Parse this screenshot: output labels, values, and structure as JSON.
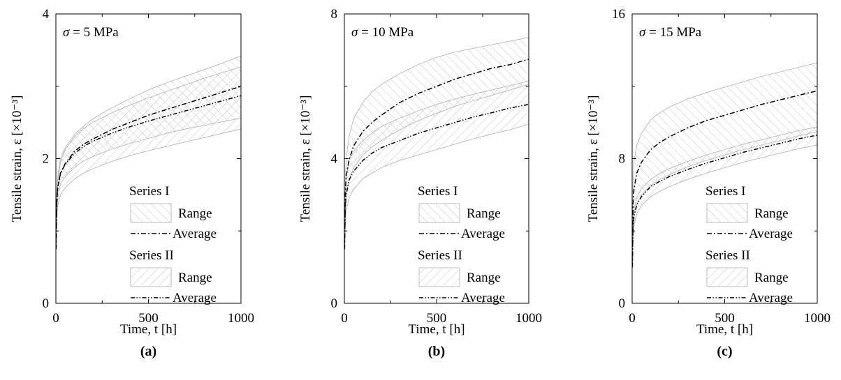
{
  "chart_data": [
    {
      "type": "area",
      "panel_label": "(a)",
      "annotation": "σ = 5 MPa",
      "xlabel": "Time, t [h]",
      "ylabel": "Tensile strain, ε [×10⁻³]",
      "xlim": [
        0,
        1000
      ],
      "ylim": [
        0,
        4
      ],
      "x_ticks": [
        0,
        500,
        1000
      ],
      "y_ticks": [
        0,
        2,
        4
      ],
      "legend": {
        "placement": "lower-right",
        "series1_label": "Series I",
        "series2_label": "Series II",
        "range_label": "Range",
        "average_label": "Average"
      },
      "x": [
        1,
        5,
        10,
        25,
        50,
        100,
        150,
        200,
        300,
        400,
        500,
        600,
        700,
        800,
        900,
        1000
      ],
      "series": [
        {
          "name": "Series I",
          "average": [
            0.75,
            1.4,
            1.6,
            1.8,
            1.93,
            2.1,
            2.2,
            2.27,
            2.4,
            2.5,
            2.6,
            2.68,
            2.76,
            2.84,
            2.92,
            3.0
          ],
          "lower": [
            0.75,
            1.3,
            1.45,
            1.65,
            1.75,
            1.88,
            1.97,
            2.03,
            2.13,
            2.21,
            2.28,
            2.35,
            2.41,
            2.46,
            2.51,
            2.56
          ],
          "upper": [
            0.75,
            1.55,
            1.75,
            2.0,
            2.15,
            2.33,
            2.45,
            2.55,
            2.7,
            2.83,
            2.95,
            3.05,
            3.14,
            3.23,
            3.32,
            3.42
          ]
        },
        {
          "name": "Series II",
          "average": [
            0.75,
            1.4,
            1.6,
            1.8,
            1.92,
            2.07,
            2.17,
            2.24,
            2.35,
            2.44,
            2.52,
            2.59,
            2.66,
            2.73,
            2.8,
            2.87
          ],
          "lower": [
            0.75,
            1.2,
            1.35,
            1.5,
            1.6,
            1.72,
            1.8,
            1.86,
            1.96,
            2.04,
            2.11,
            2.17,
            2.23,
            2.29,
            2.35,
            2.41
          ],
          "upper": [
            0.75,
            1.5,
            1.7,
            1.95,
            2.12,
            2.3,
            2.42,
            2.5,
            2.63,
            2.74,
            2.84,
            2.93,
            3.02,
            3.11,
            3.19,
            3.27
          ]
        }
      ]
    },
    {
      "type": "area",
      "panel_label": "(b)",
      "annotation": "σ = 10 MPa",
      "xlabel": "Time, t [h]",
      "ylabel": "Tensile strain, ε [×10⁻³]",
      "xlim": [
        0,
        1000
      ],
      "ylim": [
        0,
        8
      ],
      "x_ticks": [
        0,
        500,
        1000
      ],
      "y_ticks": [
        0,
        4,
        8
      ],
      "legend": {
        "placement": "lower-right",
        "series1_label": "Series I",
        "series2_label": "Series II",
        "range_label": "Range",
        "average_label": "Average"
      },
      "x": [
        1,
        5,
        10,
        25,
        50,
        100,
        150,
        200,
        300,
        400,
        500,
        600,
        700,
        800,
        900,
        1000
      ],
      "series": [
        {
          "name": "Series I",
          "average": [
            1.5,
            3.0,
            3.5,
            3.95,
            4.35,
            4.75,
            5.0,
            5.2,
            5.55,
            5.8,
            6.0,
            6.2,
            6.35,
            6.5,
            6.6,
            6.75
          ],
          "lower": [
            1.5,
            2.6,
            3.0,
            3.4,
            3.75,
            4.1,
            4.32,
            4.5,
            4.8,
            5.05,
            5.25,
            5.45,
            5.6,
            5.75,
            5.9,
            6.05
          ],
          "upper": [
            1.5,
            3.4,
            4.0,
            4.6,
            5.1,
            5.55,
            5.85,
            6.05,
            6.35,
            6.6,
            6.8,
            6.95,
            7.05,
            7.15,
            7.25,
            7.35
          ]
        },
        {
          "name": "Series II",
          "average": [
            1.5,
            2.6,
            3.0,
            3.4,
            3.65,
            3.95,
            4.15,
            4.3,
            4.5,
            4.7,
            4.85,
            5.0,
            5.15,
            5.27,
            5.4,
            5.5
          ],
          "lower": [
            1.5,
            2.2,
            2.55,
            2.9,
            3.15,
            3.45,
            3.6,
            3.75,
            3.95,
            4.1,
            4.25,
            4.4,
            4.55,
            4.68,
            4.8,
            4.95
          ],
          "upper": [
            1.5,
            3.0,
            3.5,
            3.95,
            4.2,
            4.5,
            4.72,
            4.88,
            5.12,
            5.32,
            5.5,
            5.65,
            5.78,
            5.9,
            6.02,
            6.15
          ]
        }
      ]
    },
    {
      "type": "area",
      "panel_label": "(c)",
      "annotation": "σ = 15 MPa",
      "xlabel": "Time, t [h]",
      "ylabel": "Tensile strain, ε [×10⁻³]",
      "xlim": [
        0,
        1000
      ],
      "ylim": [
        0,
        16
      ],
      "x_ticks": [
        0,
        500,
        1000
      ],
      "y_ticks": [
        0,
        8,
        16
      ],
      "legend": {
        "placement": "lower-right",
        "series1_label": "Series I",
        "series2_label": "Series II",
        "range_label": "Range",
        "average_label": "Average"
      },
      "x": [
        1,
        5,
        10,
        25,
        50,
        100,
        150,
        200,
        300,
        400,
        500,
        600,
        700,
        800,
        900,
        1000
      ],
      "series": [
        {
          "name": "Series I",
          "average": [
            2.0,
            5.5,
            6.3,
            7.2,
            7.8,
            8.5,
            8.9,
            9.2,
            9.7,
            10.1,
            10.4,
            10.7,
            11.0,
            11.25,
            11.5,
            11.75
          ],
          "lower": [
            2.0,
            4.3,
            4.95,
            5.5,
            5.95,
            6.5,
            6.85,
            7.1,
            7.55,
            7.9,
            8.2,
            8.5,
            8.75,
            9.0,
            9.25,
            9.5
          ],
          "upper": [
            2.0,
            6.8,
            7.8,
            8.75,
            9.4,
            10.15,
            10.55,
            10.85,
            11.3,
            11.65,
            11.95,
            12.25,
            12.55,
            12.8,
            13.05,
            13.3
          ]
        },
        {
          "name": "Series II",
          "average": [
            2.0,
            4.2,
            4.8,
            5.45,
            5.9,
            6.45,
            6.75,
            7.0,
            7.4,
            7.75,
            8.05,
            8.35,
            8.6,
            8.85,
            9.1,
            9.3
          ],
          "lower": [
            2.0,
            3.7,
            4.3,
            4.95,
            5.4,
            5.9,
            6.2,
            6.45,
            6.85,
            7.2,
            7.5,
            7.8,
            8.05,
            8.3,
            8.55,
            8.75
          ],
          "upper": [
            2.0,
            4.6,
            5.2,
            5.85,
            6.35,
            6.85,
            7.2,
            7.45,
            7.85,
            8.2,
            8.5,
            8.8,
            9.05,
            9.3,
            9.55,
            9.75
          ]
        }
      ]
    }
  ],
  "colors": {
    "band_stroke": "#b5b5b5",
    "hatch": "#c2c2c2",
    "axis": "#000000",
    "average_line": "#000000"
  }
}
